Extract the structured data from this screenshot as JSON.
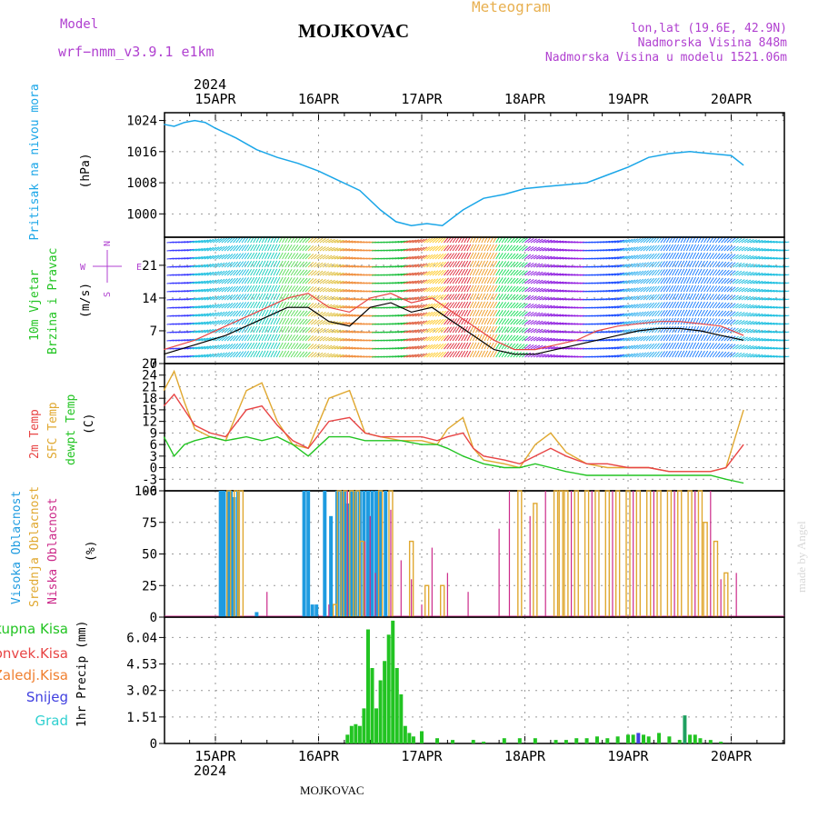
{
  "header": {
    "model_label": "Model",
    "model_name": "wrf−nmm_v3.9.1  e1km",
    "location_title": "MOJKOVAC",
    "meteogram_label": "Meteogram",
    "lonlat": "lon,lat (19.6E, 42.9N)",
    "elevation": "Nadmorska Visina 848m",
    "model_elevation": "Nadmorska Visina u modelu 1521.06m",
    "year_top": "2024",
    "year_bottom": "2024",
    "footer_location": "MOJKOVAC",
    "credit": "made by Angel"
  },
  "colors": {
    "pressure": "#1aa6e8",
    "temp2m": "#e84545",
    "sfc": "#e0a830",
    "dewpt": "#22c422",
    "high": "#1e9be0",
    "mid": "#e0a830",
    "low": "#cc2a8a",
    "total": "#22c422",
    "conv": "#e84545",
    "frz": "#f08030",
    "snow": "#4040e0",
    "hail": "#30d0d0",
    "label_purple": "#b040d0",
    "label_orange": "#e8b050"
  },
  "chart_data": [
    {
      "type": "line",
      "name": "pressure",
      "ylabel": "Pritisak na nivou mora",
      "unit": "(hPa)",
      "x_ticks": [
        "15APR",
        "16APR",
        "17APR",
        "18APR",
        "19APR",
        "20APR"
      ],
      "ylim": [
        994,
        1026
      ],
      "yticks": [
        1000,
        1008,
        1016,
        1024
      ],
      "x_days": [
        0,
        0.1,
        0.2,
        0.3,
        0.4,
        0.5,
        0.7,
        0.9,
        1.1,
        1.3,
        1.5,
        1.7,
        1.9,
        2.1,
        2.25,
        2.4,
        2.55,
        2.7,
        2.9,
        3.1,
        3.3,
        3.5,
        3.7,
        3.9,
        4.1,
        4.3,
        4.5,
        4.7,
        4.9,
        5.1,
        5.3,
        5.5,
        5.62
      ],
      "values": [
        1023,
        1022.5,
        1023.5,
        1024,
        1023.5,
        1022,
        1019.5,
        1016.5,
        1014.5,
        1013,
        1011,
        1008.5,
        1006,
        1001,
        998,
        997,
        997.5,
        997,
        1001,
        1004,
        1005,
        1006.5,
        1007,
        1007.5,
        1008,
        1010,
        1012,
        1014.5,
        1015.5,
        1016,
        1015.5,
        1015,
        1012.5
      ]
    },
    {
      "type": "line",
      "name": "wind",
      "ylabel": "10m Vjetar Brzina i Pravac",
      "unit": "(m/s)",
      "compass": {
        "n": "N",
        "e": "E",
        "w": "W",
        "s": "S"
      },
      "ylim": [
        0,
        27
      ],
      "yticks": [
        0,
        7,
        14,
        21
      ],
      "x_days": [
        0,
        0.3,
        0.6,
        0.9,
        1.2,
        1.4,
        1.6,
        1.8,
        2.0,
        2.2,
        2.4,
        2.6,
        2.8,
        3.0,
        3.2,
        3.4,
        3.6,
        3.8,
        4.0,
        4.2,
        4.4,
        4.6,
        4.8,
        5.0,
        5.2,
        5.4,
        5.62
      ],
      "series": [
        {
          "name": "wind speed",
          "values": [
            2,
            4,
            6,
            9,
            12,
            12,
            9,
            8,
            12,
            13,
            11,
            12,
            9,
            6,
            3,
            2,
            2,
            3,
            4,
            5,
            6,
            7,
            7.5,
            7.5,
            7,
            6,
            5
          ]
        },
        {
          "name": "gust",
          "values": [
            3,
            5,
            8,
            11,
            14,
            15,
            12,
            11,
            14,
            15,
            13,
            14,
            11,
            8,
            5,
            3,
            3,
            4,
            5,
            7,
            8,
            8.5,
            9,
            9,
            8.5,
            8,
            6
          ]
        }
      ]
    },
    {
      "type": "line",
      "name": "temperature",
      "unit": "(C)",
      "ylim": [
        -6,
        27
      ],
      "yticks": [
        -6,
        -3,
        0,
        3,
        6,
        9,
        12,
        15,
        18,
        21,
        24,
        27
      ],
      "legend": [
        "2m Temp",
        "SFC Temp",
        "dewpt Temp"
      ],
      "x_days": [
        0,
        0.1,
        0.2,
        0.3,
        0.45,
        0.6,
        0.8,
        0.95,
        1.1,
        1.25,
        1.4,
        1.6,
        1.8,
        1.95,
        2.1,
        2.3,
        2.5,
        2.65,
        2.75,
        2.9,
        3.0,
        3.1,
        3.3,
        3.45,
        3.6,
        3.75,
        3.9,
        4.1,
        4.3,
        4.5,
        4.7,
        4.9,
        5.1,
        5.3,
        5.45,
        5.62
      ],
      "series": [
        {
          "name": "2m Temp",
          "values": [
            16,
            19,
            15,
            11,
            9,
            8,
            15,
            16,
            11,
            7,
            5,
            12,
            13,
            9,
            8,
            8,
            8,
            7,
            8,
            9,
            5,
            3,
            2,
            1,
            3,
            5,
            3,
            1,
            1,
            0,
            0,
            -1,
            -1,
            -1,
            0,
            6
          ]
        },
        {
          "name": "SFC Temp",
          "values": [
            20,
            25,
            17,
            10,
            8,
            7,
            20,
            22,
            12,
            6,
            5,
            18,
            20,
            9,
            8,
            7,
            7,
            6,
            10,
            13,
            5,
            2,
            1,
            0,
            6,
            9,
            4,
            1,
            0,
            0,
            0,
            -1,
            -1,
            -1,
            0,
            15
          ]
        },
        {
          "name": "dewpt Temp",
          "values": [
            8,
            3,
            6,
            7,
            8,
            7,
            8,
            7,
            8,
            6,
            3,
            8,
            8,
            7,
            7,
            7,
            6,
            6,
            5,
            3,
            2,
            1,
            0,
            0,
            1,
            0,
            -1,
            -2,
            -2,
            -2,
            -2,
            -2,
            -2,
            -2,
            -3,
            -4
          ]
        }
      ]
    },
    {
      "type": "bar",
      "name": "clouds",
      "unit": "(%)",
      "ylim": [
        0,
        100
      ],
      "yticks": [
        0,
        25,
        50,
        75,
        100
      ],
      "legend": [
        "Visoka Oblacnost",
        "Srednja Oblacnost",
        "Niska Oblacnost"
      ],
      "series": [
        {
          "name": "Visoka Oblacnost",
          "x_days": [
            0.55,
            0.58,
            0.62,
            0.65,
            0.68,
            0.72,
            0.9,
            1.36,
            1.4,
            1.44,
            1.48,
            1.56,
            1.62,
            1.68,
            1.72,
            1.75,
            1.78,
            1.82,
            1.86,
            1.9,
            1.94,
            1.98,
            2.02,
            2.06,
            2.1,
            2.15
          ],
          "values": [
            100,
            100,
            100,
            100,
            95,
            100,
            4,
            100,
            100,
            10,
            10,
            100,
            80,
            100,
            100,
            100,
            90,
            100,
            100,
            100,
            100,
            100,
            100,
            100,
            100,
            100
          ]
        },
        {
          "name": "Srednja Oblacnost",
          "x_days": [
            0.63,
            0.7,
            0.75,
            1.66,
            1.7,
            1.76,
            1.82,
            1.88,
            1.92,
            2.1,
            2.2,
            2.4,
            2.55,
            2.7,
            3.45,
            3.6,
            3.8,
            3.85,
            3.9,
            4.0,
            4.1,
            4.2,
            4.3,
            4.4,
            4.5,
            4.6,
            4.7,
            4.8,
            4.9,
            5.0,
            5.1,
            5.2,
            5.25,
            5.35,
            5.45
          ],
          "values": [
            100,
            100,
            100,
            10,
            100,
            100,
            100,
            100,
            60,
            100,
            100,
            60,
            25,
            25,
            100,
            90,
            100,
            100,
            100,
            100,
            100,
            100,
            100,
            100,
            100,
            100,
            100,
            100,
            100,
            100,
            100,
            100,
            75,
            60,
            35
          ]
        },
        {
          "name": "Niska Oblacnost",
          "x_days": [
            1.0,
            1.6,
            1.78,
            1.95,
            2.0,
            2.05,
            2.2,
            2.3,
            2.4,
            2.5,
            2.6,
            2.75,
            2.95,
            3.25,
            3.35,
            3.55,
            3.7,
            3.95,
            4.15,
            4.35,
            4.55,
            4.75,
            4.95,
            5.15,
            5.3,
            5.4,
            5.55
          ],
          "values": [
            20,
            10,
            100,
            60,
            80,
            35,
            85,
            45,
            30,
            10,
            55,
            35,
            20,
            70,
            100,
            80,
            100,
            100,
            100,
            100,
            100,
            100,
            100,
            100,
            100,
            30,
            35
          ]
        }
      ]
    },
    {
      "type": "bar",
      "name": "precipitation",
      "ylabel": "1hr Precip",
      "unit": "(mm)",
      "ylim": [
        0,
        7.2
      ],
      "yticks": [
        0,
        1.51,
        3.02,
        4.53,
        6.04
      ],
      "tick_labels": [
        "0",
        "1.51",
        "3.02",
        "4.53",
        "6.04"
      ],
      "legend": [
        "Ukupna Kisa",
        "Konvek.Kisa",
        "Zaledj.Kisa",
        "Snijeg",
        "Grad"
      ],
      "x_days": [
        1.78,
        1.82,
        1.86,
        1.9,
        1.94,
        1.98,
        2.02,
        2.06,
        2.1,
        2.14,
        2.18,
        2.22,
        2.26,
        2.3,
        2.34,
        2.38,
        2.42,
        2.5,
        2.65,
        2.8,
        3.0,
        3.1,
        3.3,
        3.45,
        3.6,
        3.8,
        3.9,
        4.0,
        4.1,
        4.2,
        4.3,
        4.4,
        4.5,
        4.55,
        4.6,
        4.65,
        4.7,
        4.8,
        4.9,
        5.0,
        5.05,
        5.1,
        5.15,
        5.2,
        5.3,
        5.4
      ],
      "values": [
        0.5,
        1.0,
        1.1,
        1.0,
        2.0,
        6.5,
        4.3,
        2.0,
        3.6,
        4.7,
        6.2,
        7.0,
        4.3,
        2.8,
        1.0,
        0.6,
        0.4,
        0.7,
        0.3,
        0.2,
        0.2,
        0.1,
        0.3,
        0.3,
        0.3,
        0.2,
        0.2,
        0.3,
        0.3,
        0.4,
        0.3,
        0.4,
        0.5,
        0.5,
        0.6,
        0.5,
        0.4,
        0.6,
        0.4,
        0.2,
        1.6,
        0.5,
        0.5,
        0.3,
        0.2,
        0.1
      ]
    }
  ]
}
